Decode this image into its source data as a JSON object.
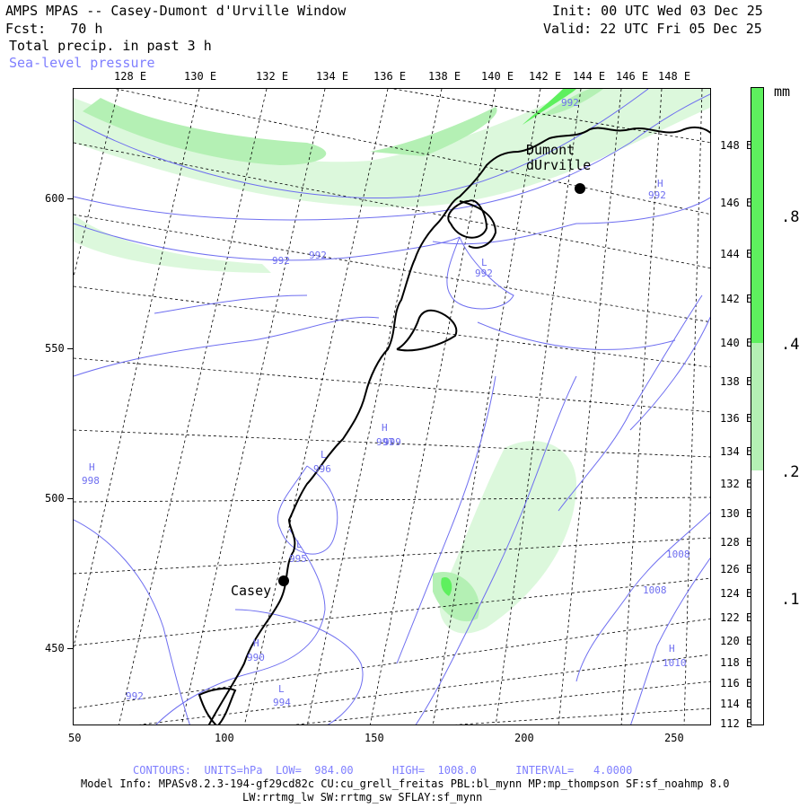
{
  "header": {
    "title": "AMPS MPAS -- Casey-Dumont d'Urville Window",
    "fcst": "Fcst:   70 h",
    "init": "Init: 00 UTC Wed 03 Dec 25",
    "valid": "Valid: 22 UTC Fri 05 Dec 25",
    "field1": "Total precip. in past 3 h",
    "field2": "Sea-level pressure"
  },
  "top_lon_labels": [
    "128 E",
    "130 E",
    "132 E",
    "134 E",
    "136 E",
    "138 E",
    "140 E",
    "142 E",
    "144 E",
    "146 E",
    "148 E"
  ],
  "right_lon_labels": [
    "148 E",
    "146 E",
    "144 E",
    "142 E",
    "140 E",
    "138 E",
    "136 E",
    "134 E",
    "132 E",
    "130 E",
    "128 E",
    "126 E",
    "124 E",
    "122 E",
    "120 E",
    "118 E",
    "116 E",
    "114 E",
    "112 E"
  ],
  "y_axis_labels": [
    "600",
    "550",
    "500",
    "450"
  ],
  "x_axis_labels": [
    "50",
    "100",
    "150",
    "200",
    "250"
  ],
  "stations": [
    {
      "name": "Dumont\ndUrville"
    },
    {
      "name": "Casey"
    }
  ],
  "pressure_labels": [
    "992",
    "992",
    "992",
    "992",
    "L",
    "992",
    "H",
    "997",
    "L",
    "996",
    "H",
    "998",
    "H",
    "999",
    "L",
    "995",
    "1008",
    "1008",
    "H",
    "1010",
    "H",
    "990",
    "L",
    "994",
    "992"
  ],
  "colorbar": {
    "unit": "mm",
    "labels": [
      ".8",
      ".4",
      ".2",
      ".1"
    ],
    "colors": {
      "dark": "#5ef05e",
      "mid": "#b4f0b4",
      "light": "#dcf8dc",
      "none": "#ffffff"
    }
  },
  "footer": {
    "contours": "CONTOURS:  UNITS=hPa  LOW=  984.00      HIGH=  1008.0      INTERVAL=   4.0000",
    "model_info": "Model Info: MPASv8.2.3-194-gf29cd82c CU:cu_grell_freitas PBL:bl_mynn MP:mp_thompson SF:sf_noahmp 8.0",
    "model_info2": "LW:rrtmg_lw SW:rrtmg_sw SFLAY:sf_mynn"
  }
}
